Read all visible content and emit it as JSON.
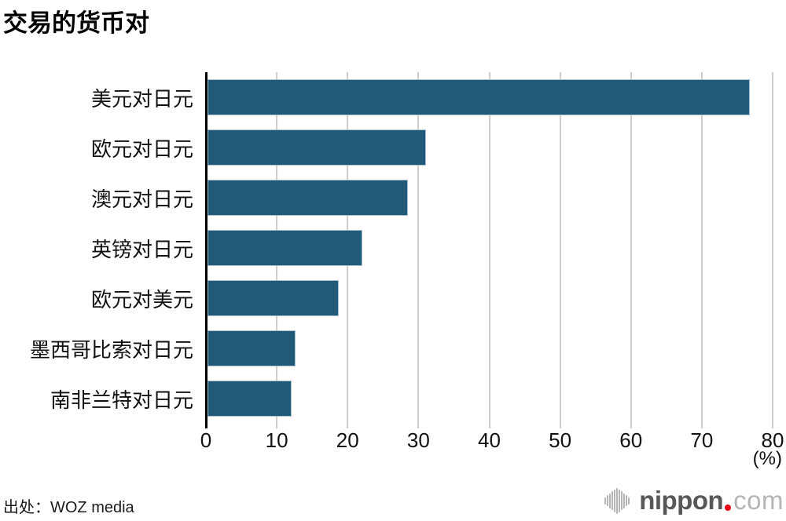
{
  "page": {
    "title": "交易的货币对",
    "source": "出处：WOZ media"
  },
  "chart_data": {
    "type": "bar",
    "orientation": "horizontal",
    "title": "交易的货币对",
    "categories": [
      "美元对日元",
      "欧元对日元",
      "澳元对日元",
      "英镑对日元",
      "欧元对美元",
      "墨西哥比索对日元",
      "南非兰特对日元"
    ],
    "values": [
      76.6,
      30.8,
      28.3,
      21.9,
      18.5,
      12.4,
      11.9
    ],
    "xlabel": "",
    "ylabel": "",
    "x_unit": "(%)",
    "xlim": [
      0,
      80
    ],
    "x_ticks": [
      0,
      10,
      20,
      30,
      40,
      50,
      60,
      70,
      80
    ],
    "grid": true,
    "legend": false,
    "bar_color": "#215a78",
    "gridline_color": "#cccccc",
    "axis_color": "#000000"
  },
  "logo": {
    "name": "nippon.com",
    "text_main": "nippon",
    "text_suffix": "com",
    "icon": "soundwave-icon",
    "main_color": "#595757",
    "suffix_color": "#b5b5b5",
    "dot_color": "#e60012"
  }
}
